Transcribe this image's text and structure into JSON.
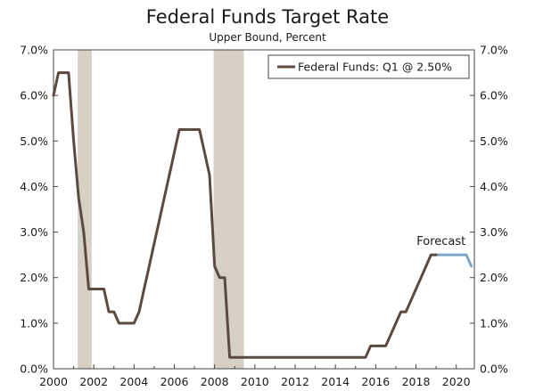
{
  "chart_data": {
    "type": "line",
    "title": "Federal Funds Target Rate",
    "subtitle": "Upper Bound, Percent",
    "xlabel": "",
    "ylabel": "",
    "xlim": [
      2000,
      2020.9
    ],
    "ylim": [
      0,
      7
    ],
    "x_ticks": [
      2000,
      2002,
      2004,
      2006,
      2008,
      2010,
      2012,
      2014,
      2016,
      2018,
      2020
    ],
    "x_tick_labels": [
      "2000",
      "2002",
      "2004",
      "2006",
      "2008",
      "2010",
      "2012",
      "2014",
      "2016",
      "2018",
      "2020"
    ],
    "y_ticks": [
      0,
      1,
      2,
      3,
      4,
      5,
      6,
      7
    ],
    "y_tick_labels": [
      "0.0%",
      "1.0%",
      "2.0%",
      "3.0%",
      "4.0%",
      "5.0%",
      "6.0%",
      "7.0%"
    ],
    "legend": {
      "position": "top-right",
      "entries": [
        "Federal Funds: Q1 @ 2.50%"
      ]
    },
    "annotations": [
      {
        "text": "Forecast",
        "x": 2019.25,
        "y": 2.6
      }
    ],
    "recessions": [
      [
        2001.2,
        2001.9
      ],
      [
        2007.95,
        2009.45
      ]
    ],
    "colors": {
      "actual": "#5a4a42",
      "forecast": "#7ea6c8",
      "recession": "#d6d0c5",
      "axis": "#444444"
    },
    "series": [
      {
        "name": "Federal Funds: Q1 @ 2.50%",
        "x": [
          2000.0,
          2000.25,
          2000.5,
          2000.75,
          2001.0,
          2001.25,
          2001.5,
          2001.75,
          2002.0,
          2002.25,
          2002.5,
          2002.75,
          2003.0,
          2003.25,
          2003.5,
          2003.75,
          2004.0,
          2004.25,
          2004.5,
          2004.75,
          2005.0,
          2005.25,
          2005.5,
          2005.75,
          2006.0,
          2006.25,
          2006.5,
          2006.75,
          2007.0,
          2007.25,
          2007.5,
          2007.75,
          2008.0,
          2008.25,
          2008.5,
          2008.75,
          2009.0,
          2009.25,
          2009.5,
          2009.75,
          2010.0,
          2011.0,
          2012.0,
          2013.0,
          2014.0,
          2015.0,
          2015.5,
          2015.75,
          2016.0,
          2016.25,
          2016.5,
          2016.75,
          2017.0,
          2017.25,
          2017.5,
          2017.75,
          2018.0,
          2018.25,
          2018.5,
          2018.75,
          2019.0
        ],
        "y": [
          6.0,
          6.5,
          6.5,
          6.5,
          5.0,
          3.75,
          3.0,
          1.75,
          1.75,
          1.75,
          1.75,
          1.25,
          1.25,
          1.0,
          1.0,
          1.0,
          1.0,
          1.25,
          1.75,
          2.25,
          2.75,
          3.25,
          3.75,
          4.25,
          4.75,
          5.25,
          5.25,
          5.25,
          5.25,
          5.25,
          4.75,
          4.25,
          2.25,
          2.0,
          2.0,
          0.25,
          0.25,
          0.25,
          0.25,
          0.25,
          0.25,
          0.25,
          0.25,
          0.25,
          0.25,
          0.25,
          0.25,
          0.5,
          0.5,
          0.5,
          0.5,
          0.75,
          1.0,
          1.25,
          1.25,
          1.5,
          1.75,
          2.0,
          2.25,
          2.5,
          2.5
        ]
      },
      {
        "name": "Forecast",
        "x": [
          2019.0,
          2019.25,
          2019.5,
          2019.75,
          2020.0,
          2020.25,
          2020.5,
          2020.75
        ],
        "y": [
          2.5,
          2.5,
          2.5,
          2.5,
          2.5,
          2.5,
          2.5,
          2.25
        ]
      }
    ]
  }
}
